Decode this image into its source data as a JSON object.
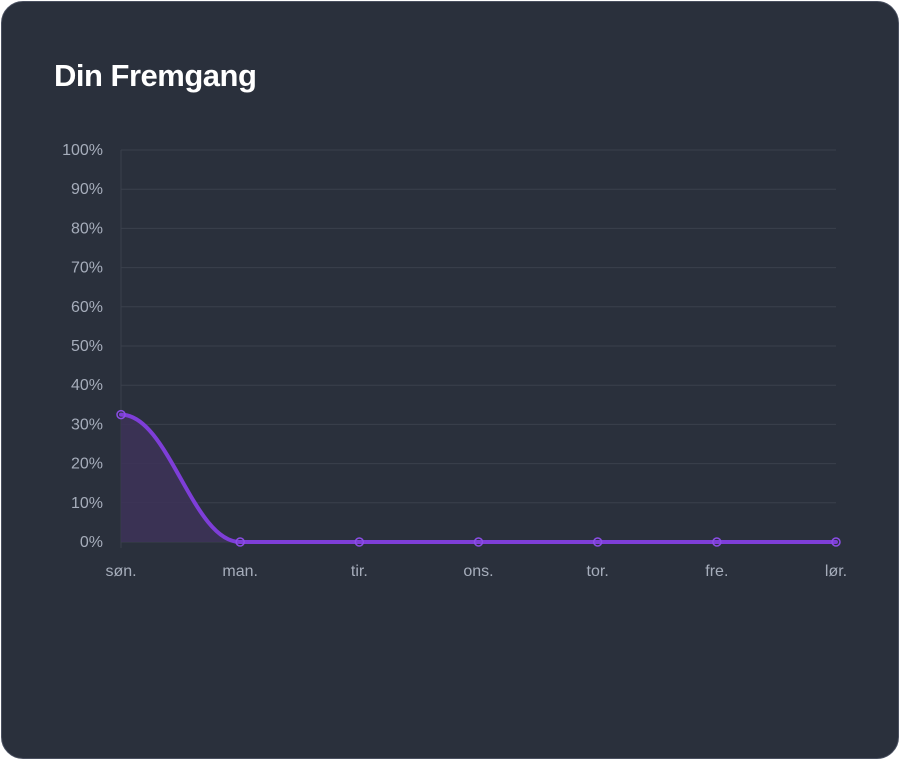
{
  "card": {
    "title": "Din Fremgang"
  },
  "chart_data": {
    "type": "area",
    "categories": [
      "søn.",
      "man.",
      "tir.",
      "ons.",
      "tor.",
      "fre.",
      "lør."
    ],
    "series": [
      {
        "values": [
          32.5,
          0,
          0,
          0,
          0,
          0,
          0
        ]
      }
    ],
    "ylim": [
      0,
      100
    ],
    "yticks": [
      "0%",
      "10%",
      "20%",
      "30%",
      "40%",
      "50%",
      "60%",
      "70%",
      "80%",
      "90%",
      "100%"
    ],
    "grid": true,
    "legend": "none",
    "colors": {
      "line": "#7e3ed8",
      "fill": "#3d3358",
      "grid": "#3a404c",
      "background": "#2a303c"
    }
  }
}
